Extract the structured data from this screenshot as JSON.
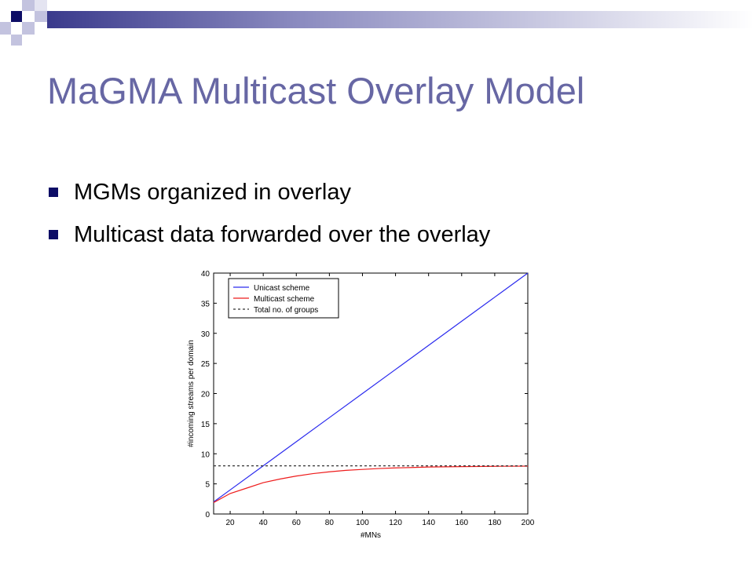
{
  "slide": {
    "title": "MaGMA Multicast Overlay Model",
    "bullets": [
      "MGMs organized in overlay",
      "Multicast data forwarded over the overlay"
    ]
  },
  "colors": {
    "title": "#6767a4",
    "bullet": "#0d0d66",
    "deco_dark": "#0d0d66",
    "deco_light": "#c3c3df",
    "unicast": "#2a2aee",
    "multicast": "#ee1c1c",
    "groups": "#333333"
  },
  "chart_data": {
    "type": "line",
    "title": "",
    "xlabel": "#MNs",
    "ylabel": "#incoming streams per domain",
    "xlim": [
      10,
      200
    ],
    "ylim": [
      0,
      40
    ],
    "xticks": [
      20,
      40,
      60,
      80,
      100,
      120,
      140,
      160,
      180,
      200
    ],
    "yticks": [
      0,
      5,
      10,
      15,
      20,
      25,
      30,
      35,
      40
    ],
    "grid": false,
    "legend_position": "top-left",
    "series": [
      {
        "name": "Unicast scheme",
        "style": "solid",
        "x": [
          10,
          20,
          40,
          60,
          80,
          100,
          120,
          140,
          160,
          180,
          200
        ],
        "y": [
          2,
          4,
          8,
          12,
          16,
          20,
          24,
          28,
          32,
          36,
          40
        ]
      },
      {
        "name": "Multicast scheme",
        "style": "solid",
        "x": [
          10,
          20,
          30,
          40,
          50,
          60,
          70,
          80,
          90,
          100,
          110,
          120,
          130,
          140,
          160,
          180,
          200
        ],
        "y": [
          1.9,
          3.4,
          4.3,
          5.2,
          5.8,
          6.3,
          6.7,
          7.0,
          7.25,
          7.4,
          7.55,
          7.65,
          7.72,
          7.8,
          7.87,
          7.92,
          7.95
        ]
      },
      {
        "name": "Total no. of groups",
        "style": "dashed",
        "x": [
          10,
          200
        ],
        "y": [
          8,
          8
        ]
      }
    ]
  }
}
